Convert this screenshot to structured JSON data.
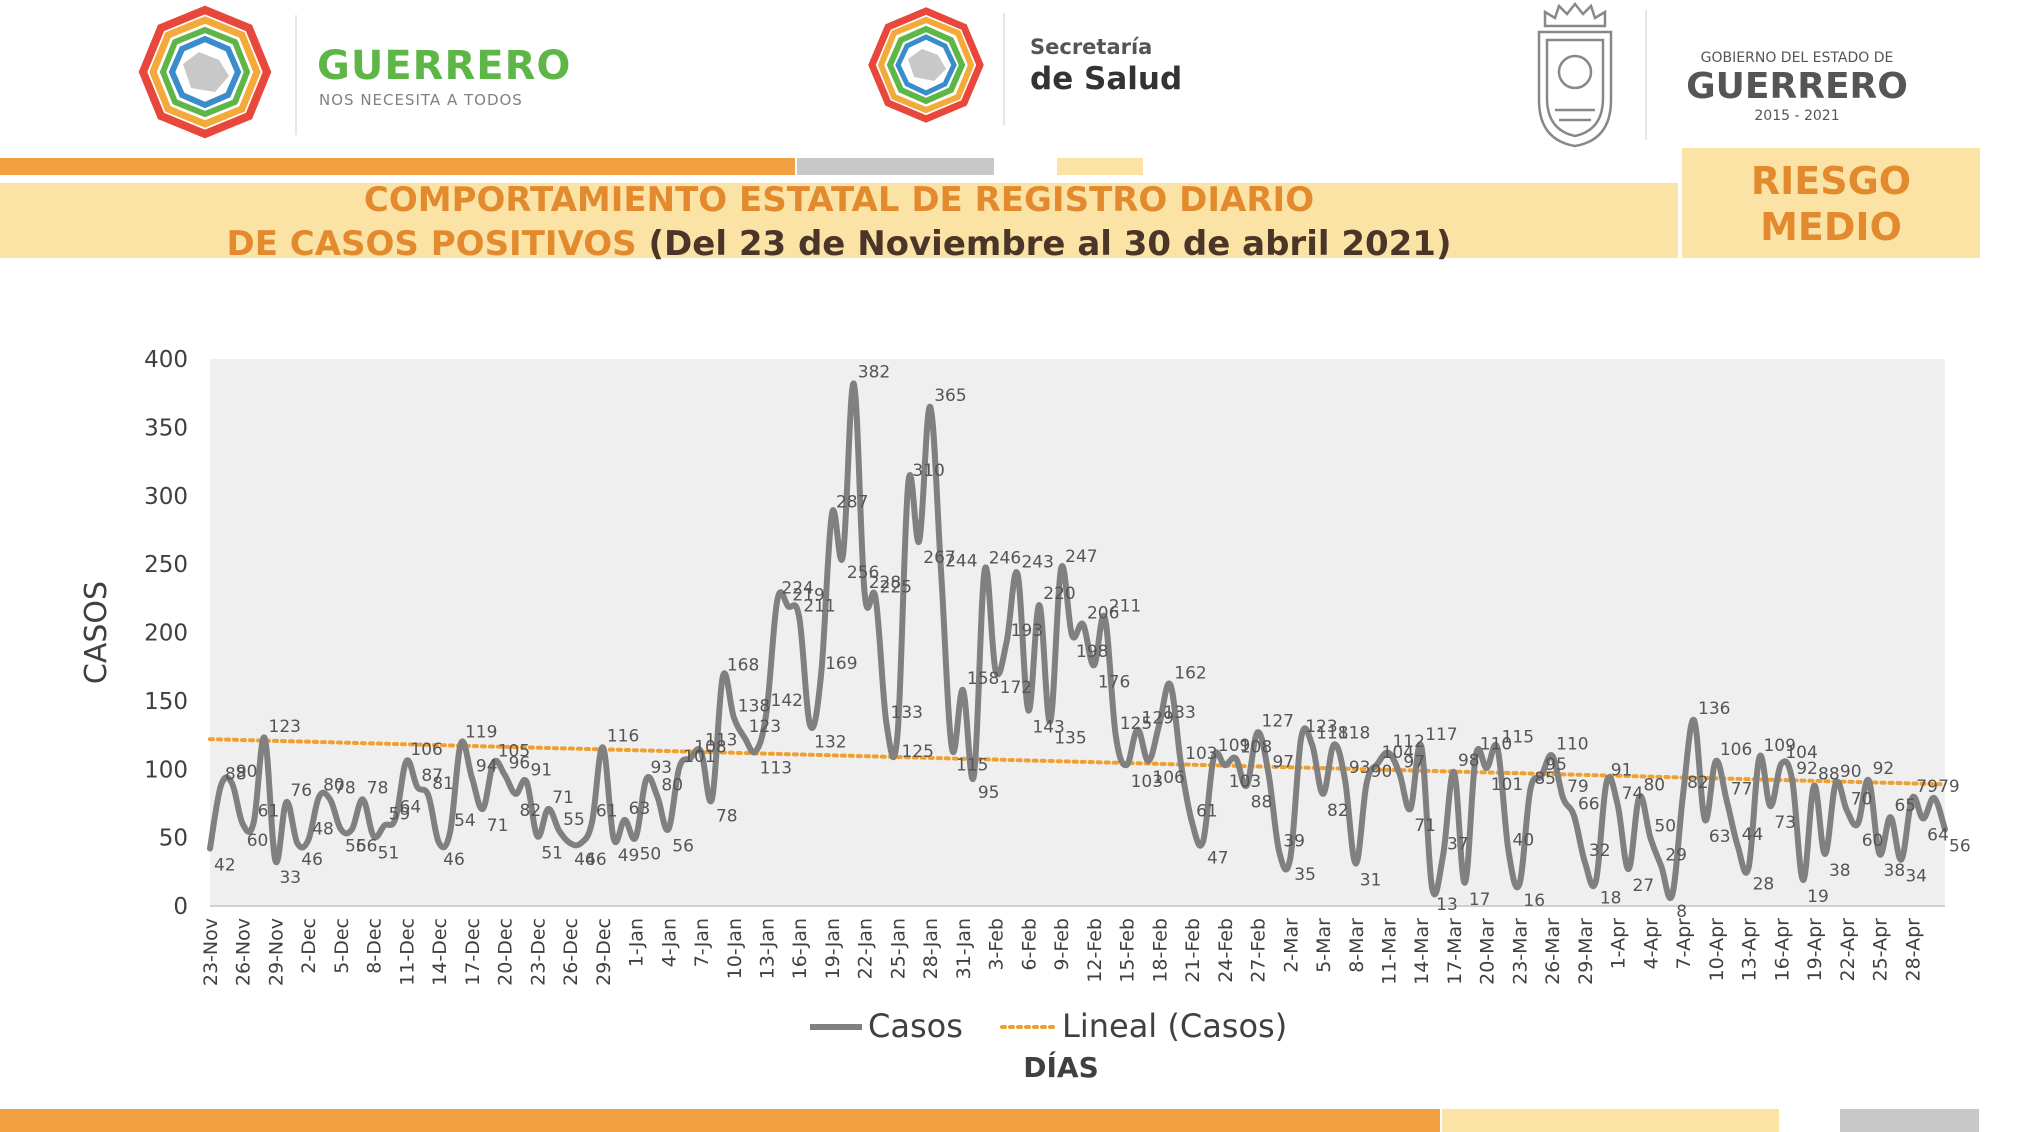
{
  "header": {
    "guerrero_logo": {
      "main": "GUERRERO",
      "tagline": "NOS NECESITA A TODOS"
    },
    "salud_logo": {
      "line1": "Secretaría",
      "line2": "de Salud"
    },
    "gobierno_logo": {
      "line1": "GOBIERNO DEL ESTADO DE",
      "line2": "GUERRERO",
      "line3": "2015 - 2021"
    }
  },
  "title": {
    "line1": "COMPORTAMIENTO ESTATAL DE REGISTRO DIARIO",
    "line2_orange": "DE CASOS POSITIVOS ",
    "line2_dark": "(Del 23 de Noviembre al 30 de abril 2021)"
  },
  "risk": {
    "line1": "RIESGO",
    "line2": "MEDIO"
  },
  "colors": {
    "orange": "#e38a2e",
    "band": "#fbe3a6",
    "gray_line": "#808080",
    "trend": "#f0a030",
    "plot_bg": "#efefef"
  },
  "chart_data": {
    "type": "line",
    "xlabel": "DÍAS",
    "ylabel": "CASOS",
    "ylim": [
      0,
      400
    ],
    "yticks": [
      0,
      50,
      100,
      150,
      200,
      250,
      300,
      350,
      400
    ],
    "start_date": "2020-11-23",
    "tick_labels": [
      "23-Nov",
      "26-Nov",
      "29-Nov",
      "2-Dec",
      "5-Dec",
      "8-Dec",
      "11-Dec",
      "14-Dec",
      "17-Dec",
      "20-Dec",
      "23-Dec",
      "26-Dec",
      "29-Dec",
      "1-Jan",
      "4-Jan",
      "7-Jan",
      "10-Jan",
      "13-Jan",
      "16-Jan",
      "19-Jan",
      "22-Jan",
      "25-Jan",
      "28-Jan",
      "31-Jan",
      "3-Feb",
      "6-Feb",
      "9-Feb",
      "12-Feb",
      "15-Feb",
      "18-Feb",
      "21-Feb",
      "24-Feb",
      "27-Feb",
      "2-Mar",
      "5-Mar",
      "8-Mar",
      "11-Mar",
      "14-Mar",
      "17-Mar",
      "20-Mar",
      "23-Mar",
      "26-Mar",
      "29-Mar",
      "1-Apr",
      "4-Apr",
      "7-Apr",
      "10-Apr",
      "13-Apr",
      "16-Apr",
      "19-Apr",
      "22-Apr",
      "25-Apr",
      "28-Apr"
    ],
    "grid": false,
    "legend": "bottom-center",
    "series": [
      {
        "name": "Casos",
        "style": "solid",
        "values": [
          42,
          88,
          90,
          60,
          61,
          123,
          33,
          76,
          46,
          48,
          80,
          78,
          56,
          56,
          78,
          51,
          59,
          64,
          106,
          87,
          81,
          46,
          54,
          119,
          94,
          71,
          105,
          96,
          82,
          91,
          51,
          71,
          55,
          46,
          46,
          61,
          116,
          49,
          63,
          50,
          93,
          80,
          56,
          101,
          108,
          113,
          78,
          168,
          138,
          123,
          113,
          142,
          224,
          219,
          211,
          132,
          169,
          287,
          256,
          382,
          228,
          225,
          133,
          125,
          310,
          267,
          365,
          244,
          115,
          158,
          95,
          246,
          172,
          193,
          243,
          143,
          220,
          135,
          247,
          198,
          206,
          176,
          211,
          125,
          103,
          129,
          106,
          133,
          162,
          103,
          61,
          47,
          109,
          103,
          108,
          88,
          127,
          97,
          39,
          35,
          123,
          118,
          82,
          118,
          93,
          31,
          90,
          104,
          112,
          97,
          71,
          117,
          13,
          37,
          98,
          17,
          110,
          101,
          115,
          40,
          16,
          85,
          95,
          110,
          79,
          66,
          32,
          18,
          91,
          74,
          27,
          80,
          50,
          29,
          8,
          82,
          136,
          63,
          106,
          77,
          44,
          28,
          109,
          73,
          104,
          92,
          19,
          88,
          38,
          90,
          70,
          60,
          92,
          38,
          65,
          34,
          79,
          64,
          79,
          56
        ]
      },
      {
        "name": "Lineal (Casos)",
        "style": "dotted",
        "trend_start": 122,
        "trend_end": 89
      }
    ]
  }
}
